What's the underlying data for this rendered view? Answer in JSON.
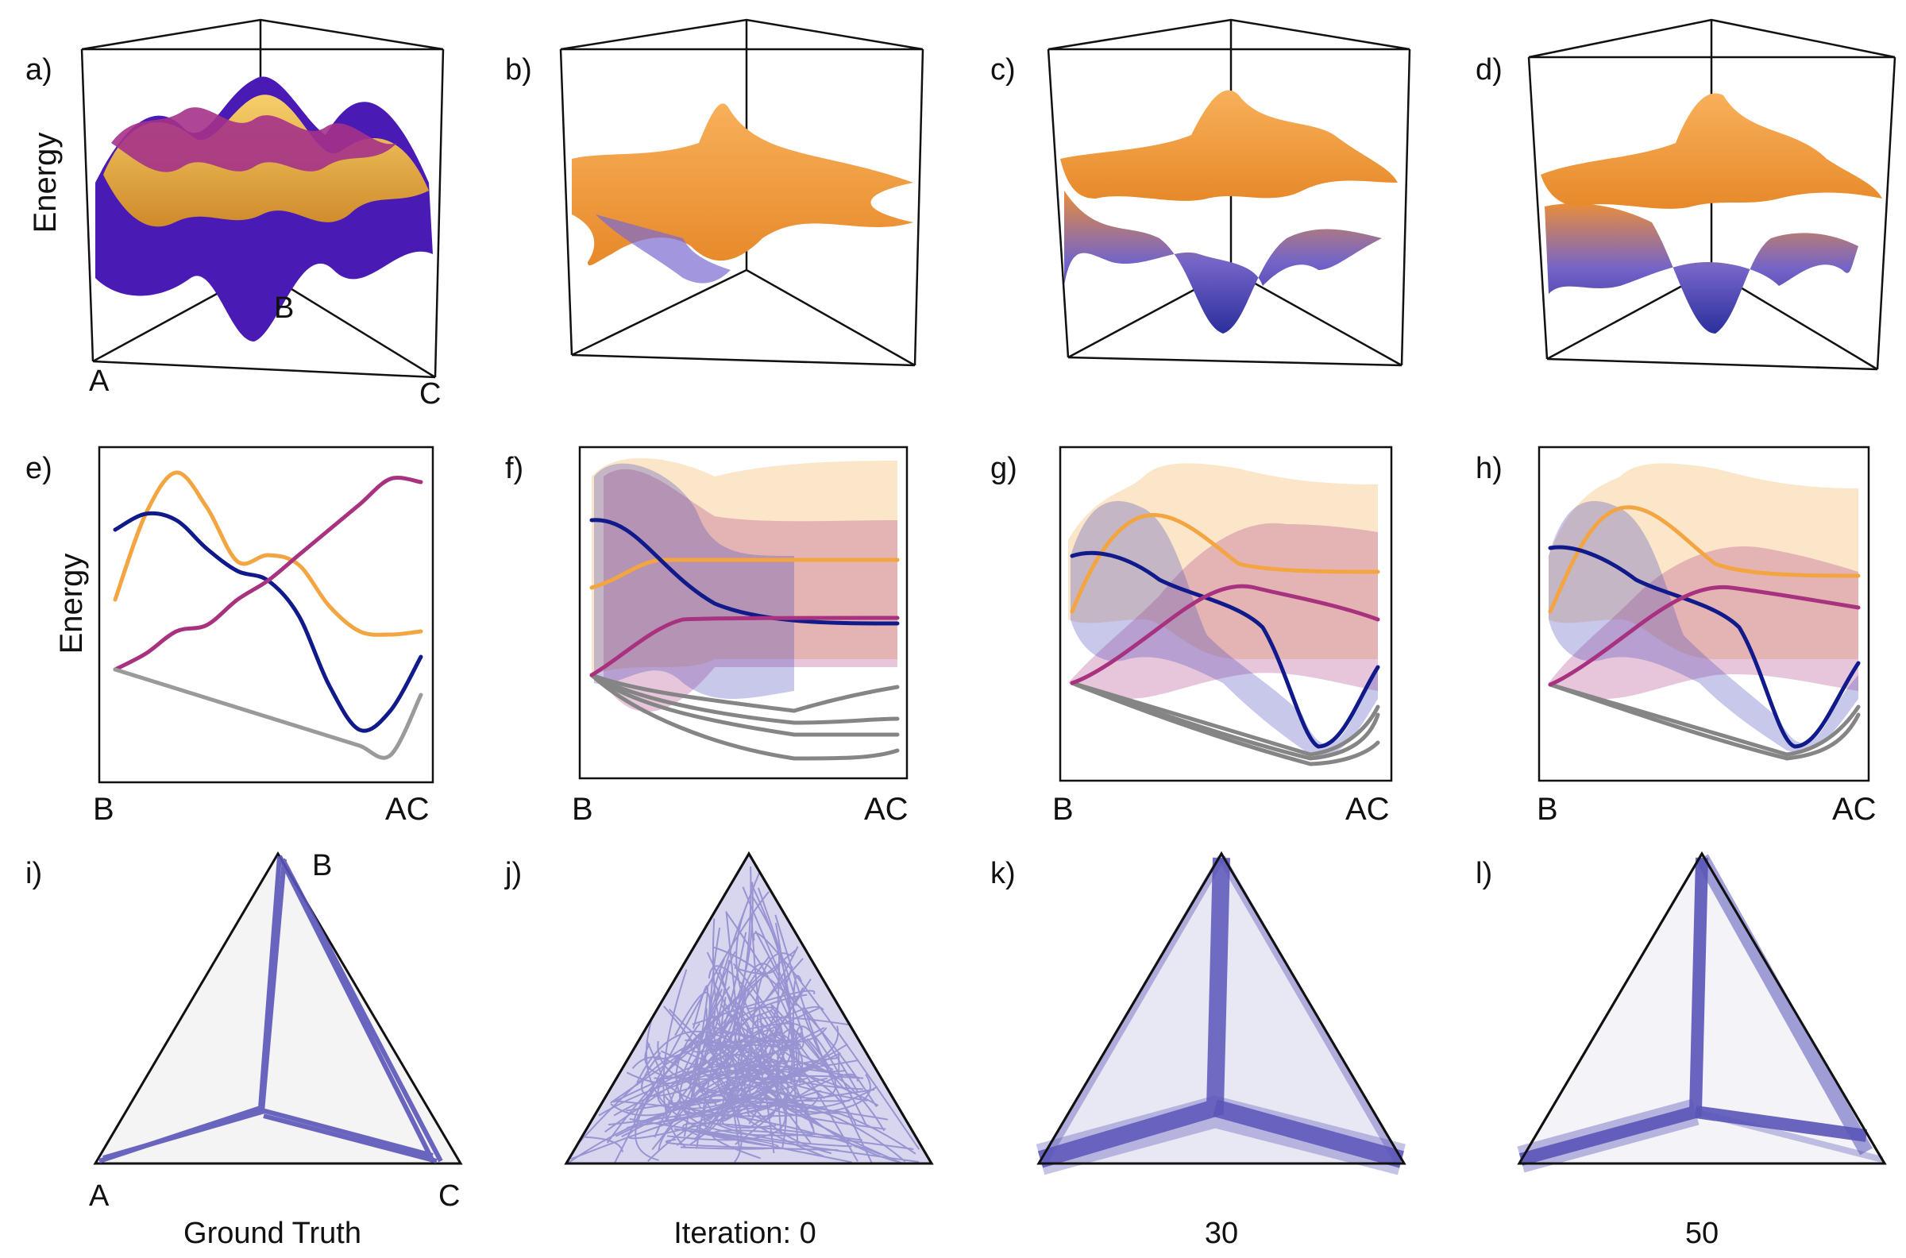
{
  "colors": {
    "orange": "#f2a541",
    "magenta": "#a8327f",
    "navy": "#101a8a",
    "gray": "#9a9a9a",
    "sample_gray": "#858585",
    "path_blue": "#5a55b8",
    "surface_purple": "#4a1ab5",
    "surface_gold": "#f0bf52",
    "surface_orange": "#f6a038",
    "triangle_fill": "#f4f4f4"
  },
  "row1": {
    "energy_label": "Energy",
    "panels": [
      {
        "label": "a)",
        "corners": {
          "a": "A",
          "b": "B",
          "c": "C"
        }
      },
      {
        "label": "b)"
      },
      {
        "label": "c)"
      },
      {
        "label": "d)"
      }
    ]
  },
  "row2": {
    "energy_label": "Energy",
    "panels": [
      {
        "label": "e)",
        "x_start": "B",
        "x_end": "AC"
      },
      {
        "label": "f)",
        "x_start": "B",
        "x_end": "AC"
      },
      {
        "label": "g)",
        "x_start": "B",
        "x_end": "AC"
      },
      {
        "label": "h)",
        "x_start": "B",
        "x_end": "AC"
      }
    ]
  },
  "row3": {
    "panels": [
      {
        "label": "i)",
        "corner_a": "A",
        "corner_b": "B",
        "corner_c": "C",
        "caption": "Ground Truth"
      },
      {
        "label": "j)",
        "caption": "Iteration: 0"
      },
      {
        "label": "k)",
        "caption": "30"
      },
      {
        "label": "l)",
        "caption": "50"
      }
    ]
  },
  "chart_data": [
    {
      "type": "line",
      "panel": "e)",
      "x_categories": [
        "B",
        "AC"
      ],
      "x": [
        0,
        0.1,
        0.2,
        0.3,
        0.4,
        0.5,
        0.6,
        0.7,
        0.8,
        0.9,
        1
      ],
      "series": [
        {
          "color": "orange",
          "values": [
            0.55,
            0.82,
            0.95,
            0.84,
            0.67,
            0.69,
            0.66,
            0.53,
            0.45,
            0.44,
            0.45
          ]
        },
        {
          "color": "navy",
          "values": [
            0.77,
            0.82,
            0.8,
            0.71,
            0.64,
            0.61,
            0.5,
            0.28,
            0.14,
            0.2,
            0.37
          ]
        },
        {
          "color": "magenta",
          "values": [
            0.33,
            0.38,
            0.45,
            0.47,
            0.55,
            0.61,
            0.69,
            0.77,
            0.85,
            0.93,
            0.92
          ]
        },
        {
          "color": "gray",
          "values": [
            0.33,
            0.3,
            0.27,
            0.24,
            0.21,
            0.18,
            0.15,
            0.12,
            0.09,
            0.06,
            0.25
          ]
        }
      ]
    }
  ]
}
